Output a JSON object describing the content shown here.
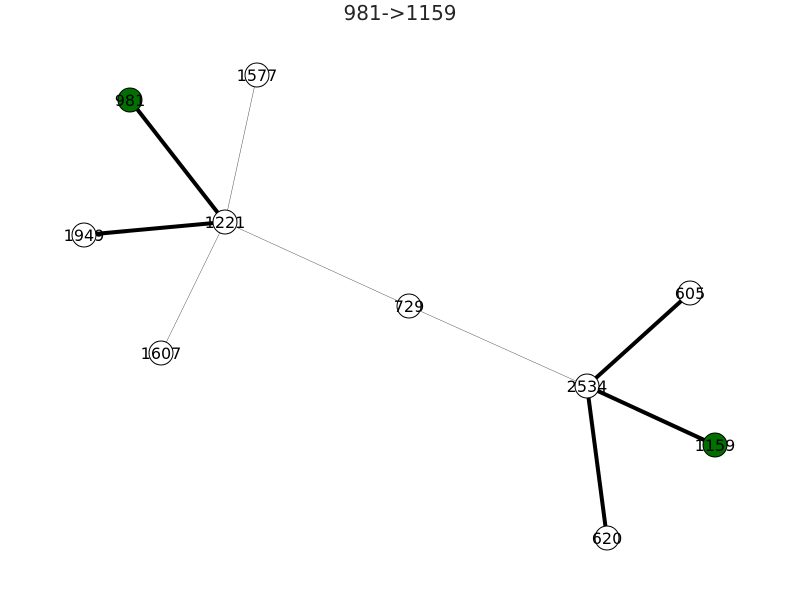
{
  "title": "981->1159",
  "colors": {
    "highlight": "#007000",
    "default_node": "#ffffff",
    "node_border": "#000000",
    "edge": "#000000",
    "text": "#000000"
  },
  "nodes": [
    {
      "id": "1577",
      "label": "1577",
      "highlight": false
    },
    {
      "id": "981",
      "label": "981",
      "highlight": true
    },
    {
      "id": "1221",
      "label": "1221",
      "highlight": false
    },
    {
      "id": "1949",
      "label": "1949",
      "highlight": false
    },
    {
      "id": "1607",
      "label": "1607",
      "highlight": false
    },
    {
      "id": "729",
      "label": "729",
      "highlight": false
    },
    {
      "id": "605",
      "label": "605",
      "highlight": false
    },
    {
      "id": "2534",
      "label": "2534",
      "highlight": false
    },
    {
      "id": "1159",
      "label": "1159",
      "highlight": true
    },
    {
      "id": "620",
      "label": "620",
      "highlight": false
    }
  ],
  "edges": [
    {
      "source": "981",
      "target": "1221",
      "bold": true
    },
    {
      "source": "1949",
      "target": "1221",
      "bold": true
    },
    {
      "source": "1577",
      "target": "1221",
      "bold": false
    },
    {
      "source": "1607",
      "target": "1221",
      "bold": false
    },
    {
      "source": "1221",
      "target": "729",
      "bold": false
    },
    {
      "source": "729",
      "target": "2534",
      "bold": false
    },
    {
      "source": "2534",
      "target": "605",
      "bold": true
    },
    {
      "source": "2534",
      "target": "1159",
      "bold": true
    },
    {
      "source": "2534",
      "target": "620",
      "bold": true
    }
  ]
}
